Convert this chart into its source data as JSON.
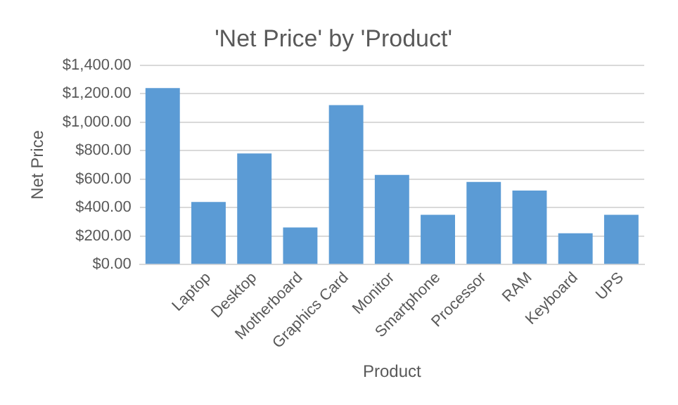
{
  "chart_data": {
    "type": "bar",
    "title": "'Net Price' by 'Product'",
    "xlabel": "Product",
    "ylabel": "Net Price",
    "categories": [
      null,
      "Laptop",
      "Desktop",
      "Motherboard",
      "Graphics Card",
      "Monitor",
      "Smartphone",
      "Processor",
      "RAM",
      "Keyboard",
      "UPS"
    ],
    "values": [
      1240,
      440,
      780,
      260,
      1120,
      630,
      350,
      580,
      520,
      220,
      350
    ],
    "color": "#5b9bd5",
    "ylim": [
      0,
      1400
    ],
    "yticks": [
      {
        "value": 0,
        "label": "$0.00"
      },
      {
        "value": 200,
        "label": "$200.00"
      },
      {
        "value": 400,
        "label": "$400.00"
      },
      {
        "value": 600,
        "label": "$600.00"
      },
      {
        "value": 800,
        "label": "$800.00"
      },
      {
        "value": 1000,
        "label": "$1,000.00"
      },
      {
        "value": 1200,
        "label": "$1,200.00"
      },
      {
        "value": 1400,
        "label": "$1,400.00"
      }
    ],
    "grid": "y",
    "legend": false
  }
}
